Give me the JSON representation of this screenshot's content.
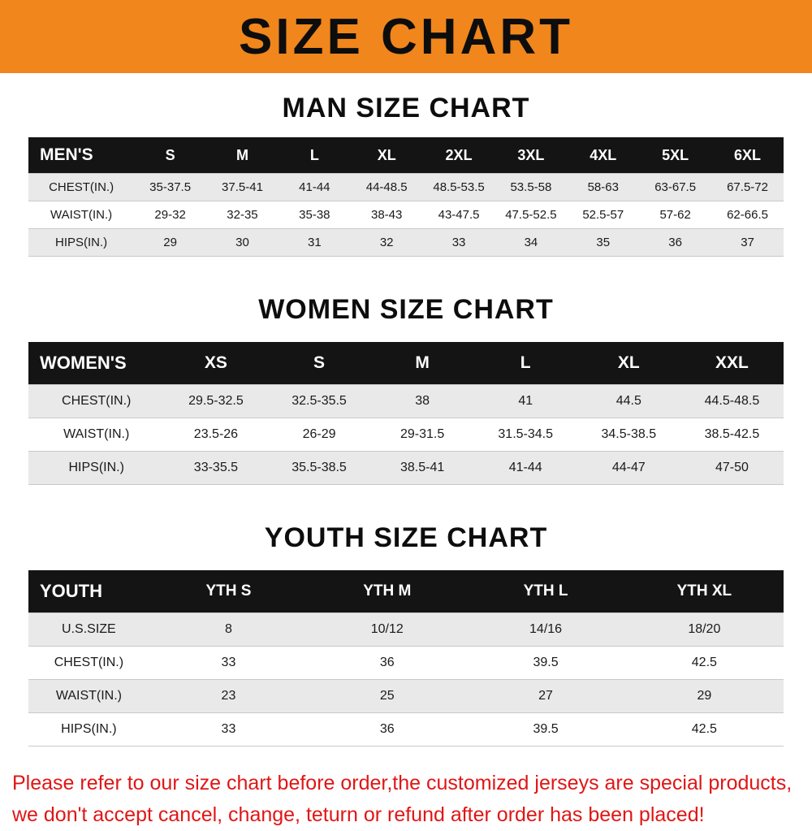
{
  "banner": {
    "title": "SIZE CHART"
  },
  "colors": {
    "banner_bg": "#f0861c",
    "table_header_bg": "#141414",
    "row_stripe": "#e9e9e9",
    "note_red": "#e01616"
  },
  "sections": {
    "men": {
      "heading": "MAN SIZE CHART",
      "table": {
        "header": [
          "MEN'S",
          "S",
          "M",
          "L",
          "XL",
          "2XL",
          "3XL",
          "4XL",
          "5XL",
          "6XL"
        ],
        "rows": [
          [
            "CHEST(IN.)",
            "35-37.5",
            "37.5-41",
            "41-44",
            "44-48.5",
            "48.5-53.5",
            "53.5-58",
            "58-63",
            "63-67.5",
            "67.5-72"
          ],
          [
            "WAIST(IN.)",
            "29-32",
            "32-35",
            "35-38",
            "38-43",
            "43-47.5",
            "47.5-52.5",
            "52.5-57",
            "57-62",
            "62-66.5"
          ],
          [
            "HIPS(IN.)",
            "29",
            "30",
            "31",
            "32",
            "33",
            "34",
            "35",
            "36",
            "37"
          ]
        ]
      }
    },
    "women": {
      "heading": "WOMEN SIZE CHART",
      "table": {
        "header": [
          "WOMEN'S",
          "XS",
          "S",
          "M",
          "L",
          "XL",
          "XXL"
        ],
        "rows": [
          [
            "CHEST(IN.)",
            "29.5-32.5",
            "32.5-35.5",
            "38",
            "41",
            "44.5",
            "44.5-48.5"
          ],
          [
            "WAIST(IN.)",
            "23.5-26",
            "26-29",
            "29-31.5",
            "31.5-34.5",
            "34.5-38.5",
            "38.5-42.5"
          ],
          [
            "HIPS(IN.)",
            "33-35.5",
            "35.5-38.5",
            "38.5-41",
            "41-44",
            "44-47",
            "47-50"
          ]
        ]
      }
    },
    "youth": {
      "heading": "YOUTH SIZE CHART",
      "table": {
        "header": [
          "YOUTH",
          "YTH S",
          "YTH M",
          "YTH L",
          "YTH XL"
        ],
        "rows": [
          [
            "U.S.SIZE",
            "8",
            "10/12",
            "14/16",
            "18/20"
          ],
          [
            "CHEST(IN.)",
            "33",
            "36",
            "39.5",
            "42.5"
          ],
          [
            "WAIST(IN.)",
            "23",
            "25",
            "27",
            "29"
          ],
          [
            "HIPS(IN.)",
            "33",
            "36",
            "39.5",
            "42.5"
          ]
        ]
      }
    }
  },
  "note": {
    "line1": "Please refer to our size chart before order,the customized jerseys are special products,",
    "line2": "we don't accept cancel, change, teturn or refund after order has been placed!"
  }
}
